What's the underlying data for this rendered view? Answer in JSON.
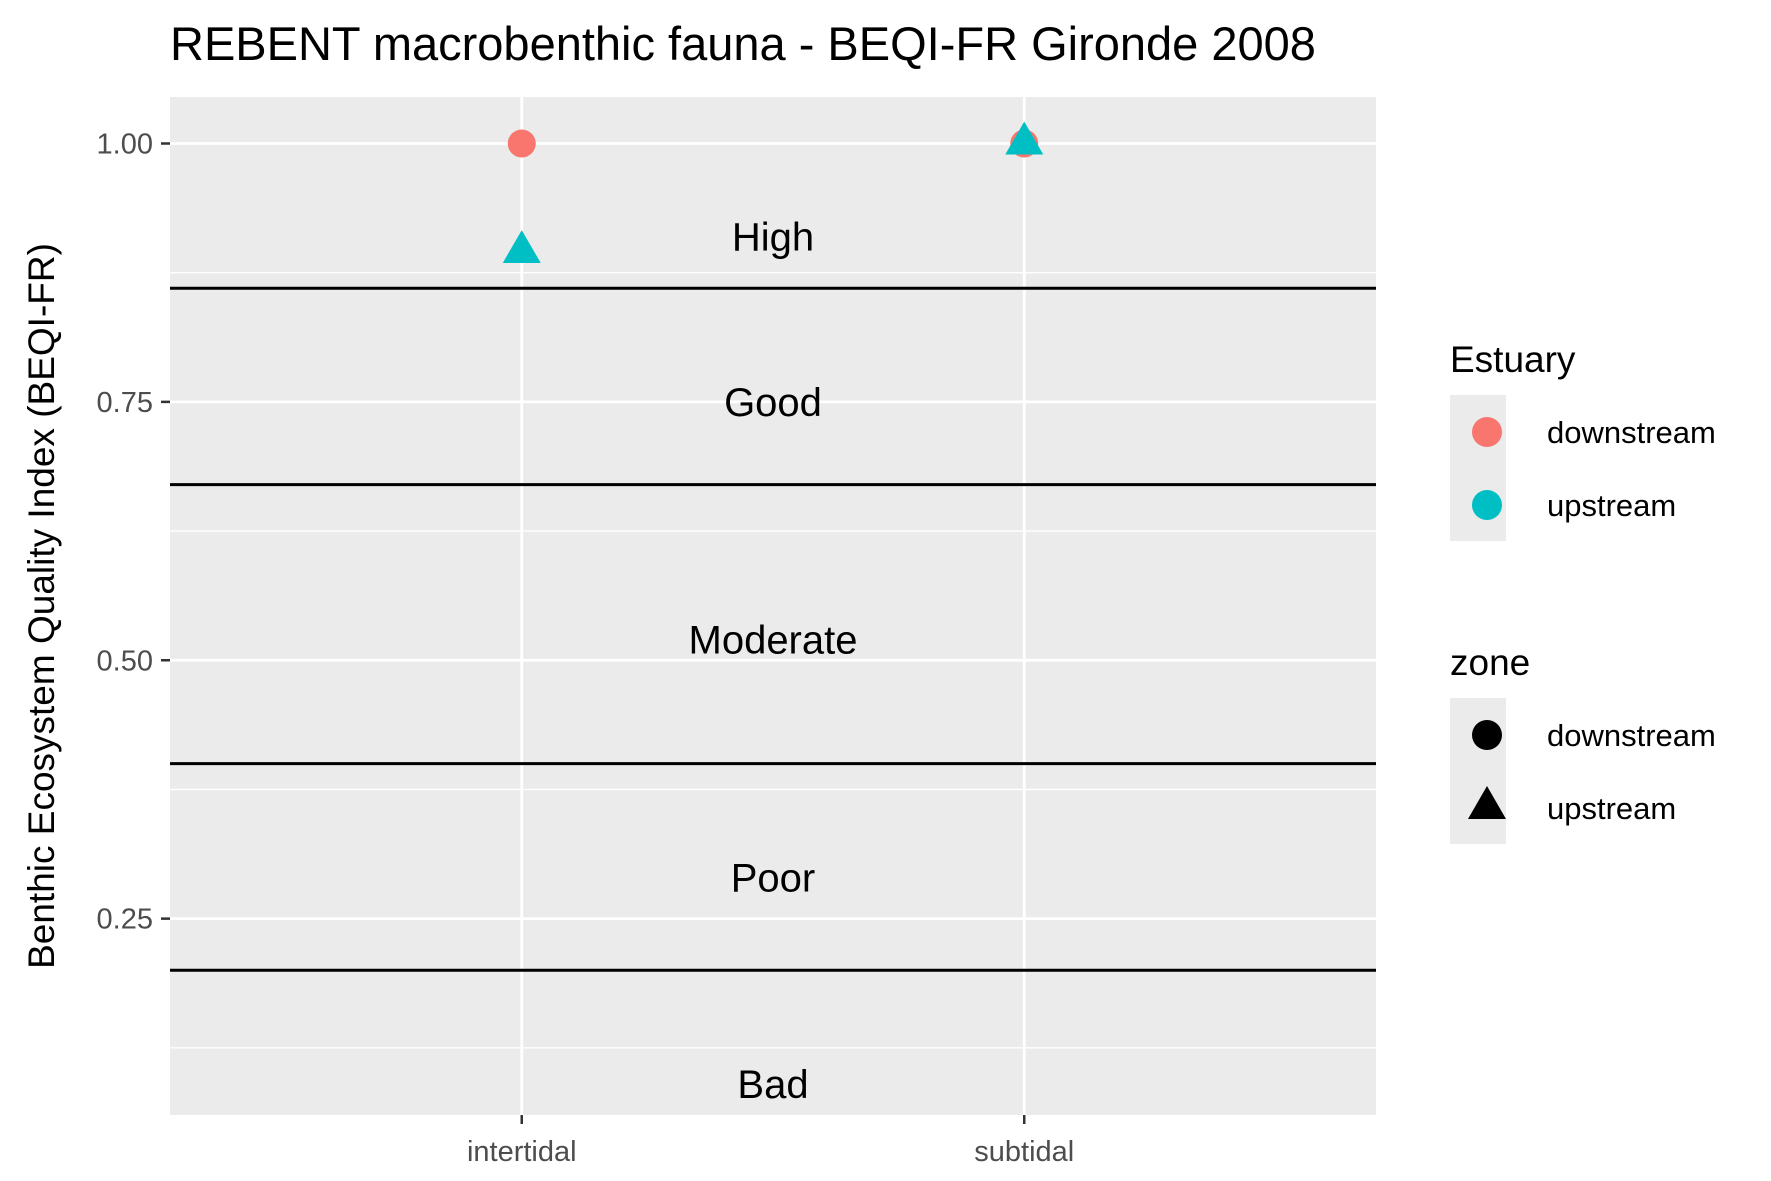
{
  "chart_data": {
    "type": "scatter",
    "title": "REBENT macrobenthic fauna - BEQI-FR Gironde 2008",
    "xlabel": "",
    "ylabel": "Benthic Ecosystem Quality Index (BEQI-FR)",
    "categories": [
      "intertidal",
      "subtidal"
    ],
    "ylim": [
      0.06,
      1.045
    ],
    "yticks": [
      {
        "value": 0.25,
        "label": "0.25"
      },
      {
        "value": 0.5,
        "label": "0.50"
      },
      {
        "value": 0.75,
        "label": "0.75"
      },
      {
        "value": 1.0,
        "label": "1.00"
      }
    ],
    "grid": true,
    "background": "#ebebeb",
    "thresholds": [
      0.2,
      0.4,
      0.67,
      0.86
    ],
    "bands": [
      {
        "label": "High",
        "y": 0.91
      },
      {
        "label": "Good",
        "y": 0.75
      },
      {
        "label": "Moderate",
        "y": 0.52
      },
      {
        "label": "Poor",
        "y": 0.29
      },
      {
        "label": "Bad",
        "y": 0.09
      }
    ],
    "series": [
      {
        "name": "downstream",
        "color": "#f8766d",
        "shape": "circle",
        "points": [
          {
            "x": "intertidal",
            "y": 1.0
          },
          {
            "x": "subtidal",
            "y": 1.0
          }
        ]
      },
      {
        "name": "upstream",
        "color": "#00bfc4",
        "shape": "triangle",
        "points": [
          {
            "x": "intertidal",
            "y": 0.895
          },
          {
            "x": "subtidal",
            "y": 1.0
          }
        ]
      }
    ],
    "legends": [
      {
        "title": "Estuary",
        "entries": [
          {
            "label": "downstream",
            "color": "#f8766d",
            "shape": "circle"
          },
          {
            "label": "upstream",
            "color": "#00bfc4",
            "shape": "circle"
          }
        ]
      },
      {
        "title": "zone",
        "entries": [
          {
            "label": "downstream",
            "color": "#000000",
            "shape": "circle"
          },
          {
            "label": "upstream",
            "color": "#000000",
            "shape": "triangle"
          }
        ]
      }
    ],
    "legend_position": "right"
  }
}
